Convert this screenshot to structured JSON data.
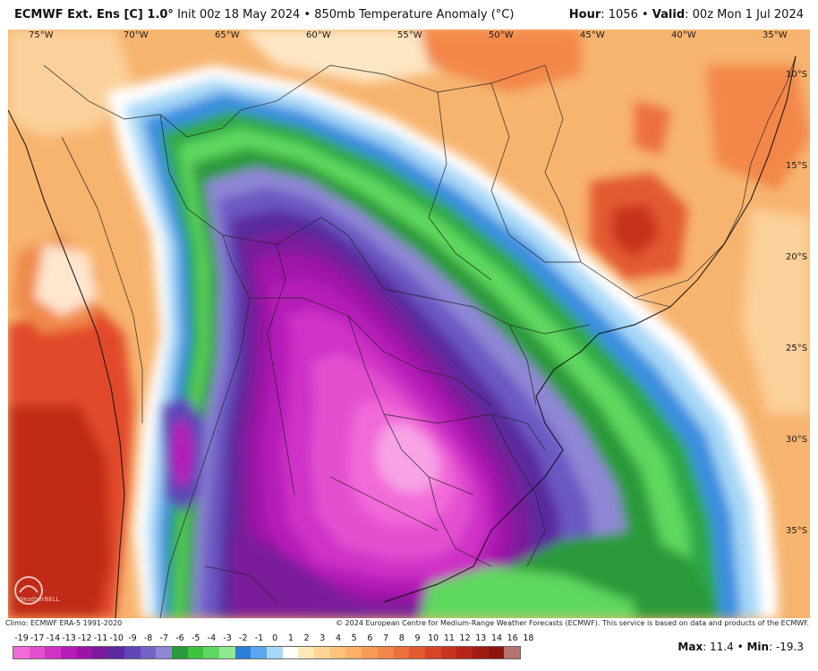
{
  "header": {
    "model": "ECMWF Ext. Ens [C] 1.0°",
    "init": "Init 00z 18 May 2024",
    "product": "850mb Temperature Anomaly (°C)",
    "hour_label": "Hour",
    "hour_value": ": 1056",
    "valid_label": "Valid",
    "valid_value": ": 00z Mon 1 Jul 2024",
    "separator": " • "
  },
  "longitude_labels": [
    "75°W",
    "70°W",
    "65°W",
    "60°W",
    "55°W",
    "50°W",
    "45°W",
    "40°W",
    "35°W"
  ],
  "latitude_labels": [
    "10°S",
    "15°S",
    "20°S",
    "25°S",
    "30°S",
    "35°S"
  ],
  "footer": {
    "climo": "Climo: ECMWF ERA-5 1991-2020",
    "copyright": "© 2024 European Centre for Medium-Range Weather Forecasts (ECMWF). This service is based on data and products of the ECMWF."
  },
  "colorbar": {
    "labels": [
      "-19",
      "-17",
      "-14",
      "-13",
      "-12",
      "-11",
      "-10",
      "-9",
      "-8",
      "-7",
      "-6",
      "-5",
      "-4",
      "-3",
      "-2",
      "-1",
      "0",
      "1",
      "2",
      "3",
      "4",
      "5",
      "6",
      "7",
      "8",
      "9",
      "10",
      "11",
      "12",
      "13",
      "14",
      "16",
      "18"
    ],
    "colors": [
      "#f26bd8",
      "#e44fd0",
      "#cf33c6",
      "#b61cb8",
      "#9f12a8",
      "#7a1a9a",
      "#5a2a9e",
      "#5f45b8",
      "#7462c6",
      "#8f86d6",
      "#2a9a3a",
      "#3fc23f",
      "#5fd85f",
      "#90e890",
      "#2a7fd9",
      "#5aa7ee",
      "#a7d8f7",
      "#ffffff",
      "#ffe8b8",
      "#ffd596",
      "#ffc27a",
      "#fbb06a",
      "#f79c58",
      "#f3874a",
      "#ec703c",
      "#e35a30",
      "#d84426",
      "#c9321c",
      "#b52416",
      "#a21b12",
      "#8e140e",
      "#b5736d"
    ]
  },
  "stats": {
    "max_label": "Max",
    "max_value": ": 11.4",
    "min_label": "Min",
    "min_value": ": -19.3",
    "separator": " • "
  },
  "logo_text": "WeatherBELL"
}
